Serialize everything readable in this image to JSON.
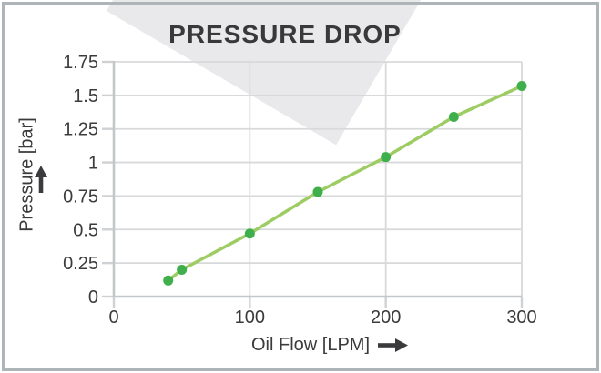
{
  "title": "PRESSURE DROP",
  "y_axis": {
    "label": "Pressure [bar]",
    "arrow_icon": "up-arrow"
  },
  "x_axis": {
    "label": "Oil Flow [LPM]",
    "arrow_icon": "right-arrow"
  },
  "colors": {
    "frame": "#AEB5B8",
    "band": "#E9E9EB",
    "grid": "#D8D9DB",
    "axis": "#C4C7C9",
    "tick": "#CFD2D4",
    "text": "#3B3B3D",
    "line": "#9DCC63",
    "point": "#3FAF4C"
  },
  "chart_data": {
    "type": "line",
    "title": "PRESSURE DROP",
    "xlabel": "Oil Flow [LPM]",
    "ylabel": "Pressure [bar]",
    "x": [
      40,
      50,
      100,
      150,
      200,
      250,
      300
    ],
    "y": [
      0.12,
      0.2,
      0.47,
      0.78,
      1.04,
      1.34,
      1.57
    ],
    "xlim": [
      0,
      300
    ],
    "ylim": [
      0,
      1.75
    ],
    "x_ticks": [
      0,
      100,
      200,
      300
    ],
    "y_ticks": [
      0,
      0.25,
      0.5,
      0.75,
      1,
      1.25,
      1.5,
      1.75
    ],
    "grid": true,
    "legend": false,
    "marker": "circle"
  }
}
